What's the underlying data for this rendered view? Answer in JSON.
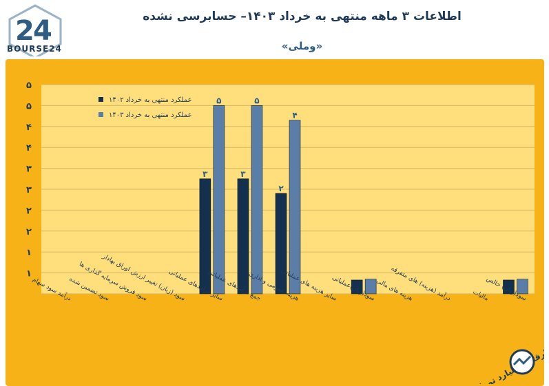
{
  "header": {
    "title": "اطلاعات ۳ ماهه منتهی به خرداد ۱۴۰۳– حسابرسی نشده",
    "subtitle": "«وملی»",
    "logo_text": "BOURSE24"
  },
  "unit_label": "ارقام: میلیارد تومان",
  "colors": {
    "background": "#f7b217",
    "plot_bg": "#ffde7c",
    "series_1402": "#13304f",
    "series_1403": "#5a7ea8",
    "text": "#1f3b57"
  },
  "chart_data": {
    "type": "bar",
    "title": "",
    "xlabel": "",
    "ylabel": "",
    "ylim": [
      0,
      5
    ],
    "yticks": [
      "",
      "۱",
      "۱",
      "۲",
      "۲",
      "۳",
      "۳",
      "۴",
      "۴",
      "۵",
      "۵"
    ],
    "grid": true,
    "legend_position": "top-left",
    "categories": [
      "درآمد سود سهام",
      "سود تضمین شده",
      "سود فروش سرمایه گذاری ها",
      "سود (زیان) تغییر ارزش اوراق بهادار",
      "سایر درآمدهای عملیاتی",
      "جمع درآمدهای عملیاتی",
      "هزینه عمومی و اداری",
      "سایر هزینه های عملیاتی",
      "سود(زیان)عملیاتی",
      "هزینه های مالی",
      "درآمد (هزینه) های متفرقه",
      "مالیات",
      "سود(زیان) خالص"
    ],
    "series": [
      {
        "name": "عملکرد منتهی به خرداد ۱۴۰۲",
        "values": [
          0,
          0,
          0,
          0,
          2.75,
          2.75,
          2.4,
          0,
          0.33,
          0,
          0,
          0,
          0.33
        ],
        "labels": [
          "",
          "",
          "",
          "",
          "۳",
          "۳",
          "۲",
          "",
          "",
          "",
          "",
          "",
          ""
        ]
      },
      {
        "name": "عملکرد منتهی به خرداد ۱۴۰۳",
        "values": [
          0,
          0,
          0,
          0,
          4.5,
          4.5,
          4.15,
          0,
          0.35,
          0,
          0,
          0,
          0.35
        ],
        "labels": [
          "",
          "",
          "",
          "",
          "۵",
          "۵",
          "۴",
          "",
          "",
          "",
          "",
          "",
          ""
        ]
      }
    ]
  }
}
